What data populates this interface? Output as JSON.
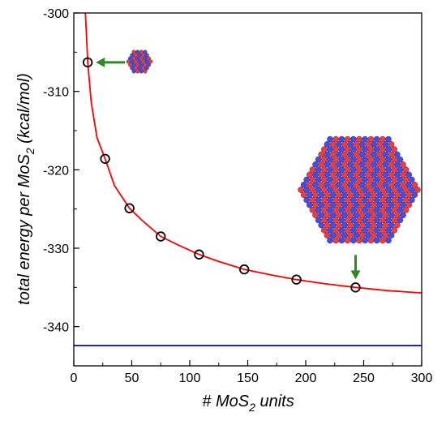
{
  "chart_data": {
    "type": "scatter",
    "title": "",
    "xlabel_parts": [
      "# MoS",
      "2",
      " units"
    ],
    "ylabel_parts": [
      "total energy per MoS",
      "2",
      " (kcal/mol)"
    ],
    "xlim": [
      0,
      300
    ],
    "ylim": [
      -345,
      -300
    ],
    "xticks": [
      0,
      50,
      100,
      150,
      200,
      250,
      300
    ],
    "yticks": [
      -340,
      -330,
      -320,
      -310,
      -300
    ],
    "grid": false,
    "series": [
      {
        "style": "open-circle-markers",
        "color": "#000000",
        "x": [
          12,
          27,
          48,
          75,
          108,
          147,
          192,
          243
        ],
        "y": [
          -306.3,
          -318.6,
          -324.9,
          -328.5,
          -330.8,
          -332.7,
          -334.0,
          -335.0
        ]
      },
      {
        "style": "line",
        "color": "#ff0000",
        "x": [
          10,
          12,
          15,
          20,
          27,
          35,
          48,
          60,
          75,
          90,
          108,
          125,
          147,
          170,
          192,
          215,
          243,
          270,
          300
        ],
        "y": [
          -300,
          -306.3,
          -311.4,
          -315.9,
          -318.6,
          -322.0,
          -324.9,
          -326.6,
          -328.5,
          -329.6,
          -330.8,
          -331.7,
          -332.7,
          -333.4,
          -334.0,
          -334.5,
          -335.0,
          -335.4,
          -335.7
        ]
      },
      {
        "style": "line",
        "color": "#0000ff",
        "x": [
          0,
          300
        ],
        "y": [
          -342.4,
          -342.4
        ]
      }
    ],
    "insets": [
      {
        "name": "small-nanoparticle",
        "arrow_direction": "left",
        "points_to_x": 12,
        "points_to_y": -306.3
      },
      {
        "name": "large-nanoparticle",
        "arrow_direction": "down",
        "points_to_x": 243,
        "points_to_y": -335.0
      }
    ],
    "colors": {
      "atom_red": "#f03c3c",
      "atom_blue": "#4b4bdc",
      "arrow_green": "#2e8b1e"
    }
  }
}
